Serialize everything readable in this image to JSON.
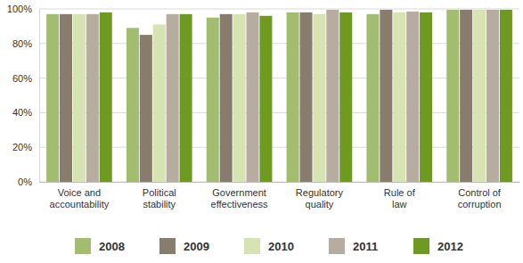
{
  "chart_data": {
    "type": "bar",
    "categories": [
      "Voice and accountability",
      "Political stability",
      "Government effectiveness",
      "Regulatory quality",
      "Rule of law",
      "Control of corruption"
    ],
    "series": [
      {
        "name": "2008",
        "color": "#a2bd6f",
        "values": [
          97,
          89,
          95,
          98,
          97,
          99.5
        ]
      },
      {
        "name": "2009",
        "color": "#887c6c",
        "values": [
          97,
          85,
          97,
          98,
          99.5,
          99.5
        ]
      },
      {
        "name": "2010",
        "color": "#d6e4b2",
        "values": [
          97,
          91,
          97,
          97,
          98,
          99.5
        ]
      },
      {
        "name": "2011",
        "color": "#b6aca0",
        "values": [
          97,
          97,
          98,
          99.5,
          98.5,
          99.5
        ]
      },
      {
        "name": "2012",
        "color": "#6f9a22",
        "values": [
          98,
          97,
          96,
          98,
          98,
          99.5
        ]
      }
    ],
    "ylim": [
      0,
      100
    ],
    "yticks": [
      {
        "value": 0,
        "label": "0%"
      },
      {
        "value": 20,
        "label": "20%"
      },
      {
        "value": 40,
        "label": "40%"
      },
      {
        "value": 60,
        "label": "60%"
      },
      {
        "value": 80,
        "label": "80%"
      },
      {
        "value": 100,
        "label": "100%"
      }
    ],
    "grid": true,
    "legend": "bottom"
  }
}
